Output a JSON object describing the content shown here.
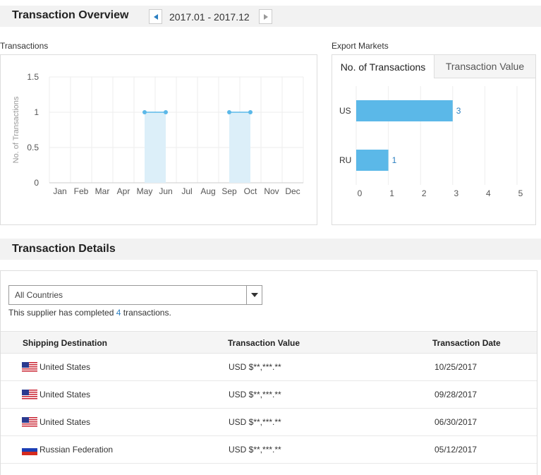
{
  "overview": {
    "title": "Transaction Overview",
    "date_range": "2017.01 - 2017.12",
    "prev_icon": "caret-left-icon",
    "next_icon": "caret-right-icon"
  },
  "transactions_chart": {
    "caption": "Transactions"
  },
  "export_markets": {
    "caption": "Export Markets",
    "tabs": [
      {
        "label": "No. of Transactions",
        "active": true
      },
      {
        "label": "Transaction Value",
        "active": false
      }
    ]
  },
  "chart_data": [
    {
      "type": "line",
      "title": "Transactions",
      "xlabel": "",
      "ylabel": "No. of Transactions",
      "categories": [
        "Jan",
        "Feb",
        "Mar",
        "Apr",
        "May",
        "Jun",
        "Jul",
        "Aug",
        "Sep",
        "Oct",
        "Nov",
        "Dec"
      ],
      "values": [
        0,
        0,
        0,
        0,
        1,
        1,
        0,
        0,
        1,
        1,
        0,
        0
      ],
      "ylim": [
        0,
        1.5
      ],
      "yticks": [
        "0",
        "0.5",
        "1",
        "1.5"
      ],
      "grid": true,
      "color": "#5bb8e8"
    },
    {
      "type": "bar",
      "orientation": "horizontal",
      "title": "Export Markets",
      "categories": [
        "US",
        "RU"
      ],
      "values": [
        3,
        1
      ],
      "xlim": [
        0,
        5
      ],
      "xticks": [
        "0",
        "1",
        "2",
        "3",
        "4",
        "5"
      ],
      "grid": true,
      "color": "#5bb8e8"
    }
  ],
  "details": {
    "title": "Transaction Details",
    "filter_value": "All Countries",
    "summary_prefix": "This supplier has completed ",
    "summary_count": "4",
    "summary_suffix": " transactions.",
    "columns": [
      "Shipping Destination",
      "Transaction Value",
      "Transaction Date"
    ],
    "rows": [
      {
        "flag": "us-flag-icon",
        "destination": "United States",
        "value": "USD $**,***.**",
        "date": "10/25/2017"
      },
      {
        "flag": "us-flag-icon",
        "destination": "United States",
        "value": "USD $**,***.**",
        "date": "09/28/2017"
      },
      {
        "flag": "us-flag-icon",
        "destination": "United States",
        "value": "USD $**,***.**",
        "date": "06/30/2017"
      },
      {
        "flag": "ru-flag-icon",
        "destination": "Russian Federation",
        "value": "USD $**,***.**",
        "date": "05/12/2017"
      }
    ]
  }
}
